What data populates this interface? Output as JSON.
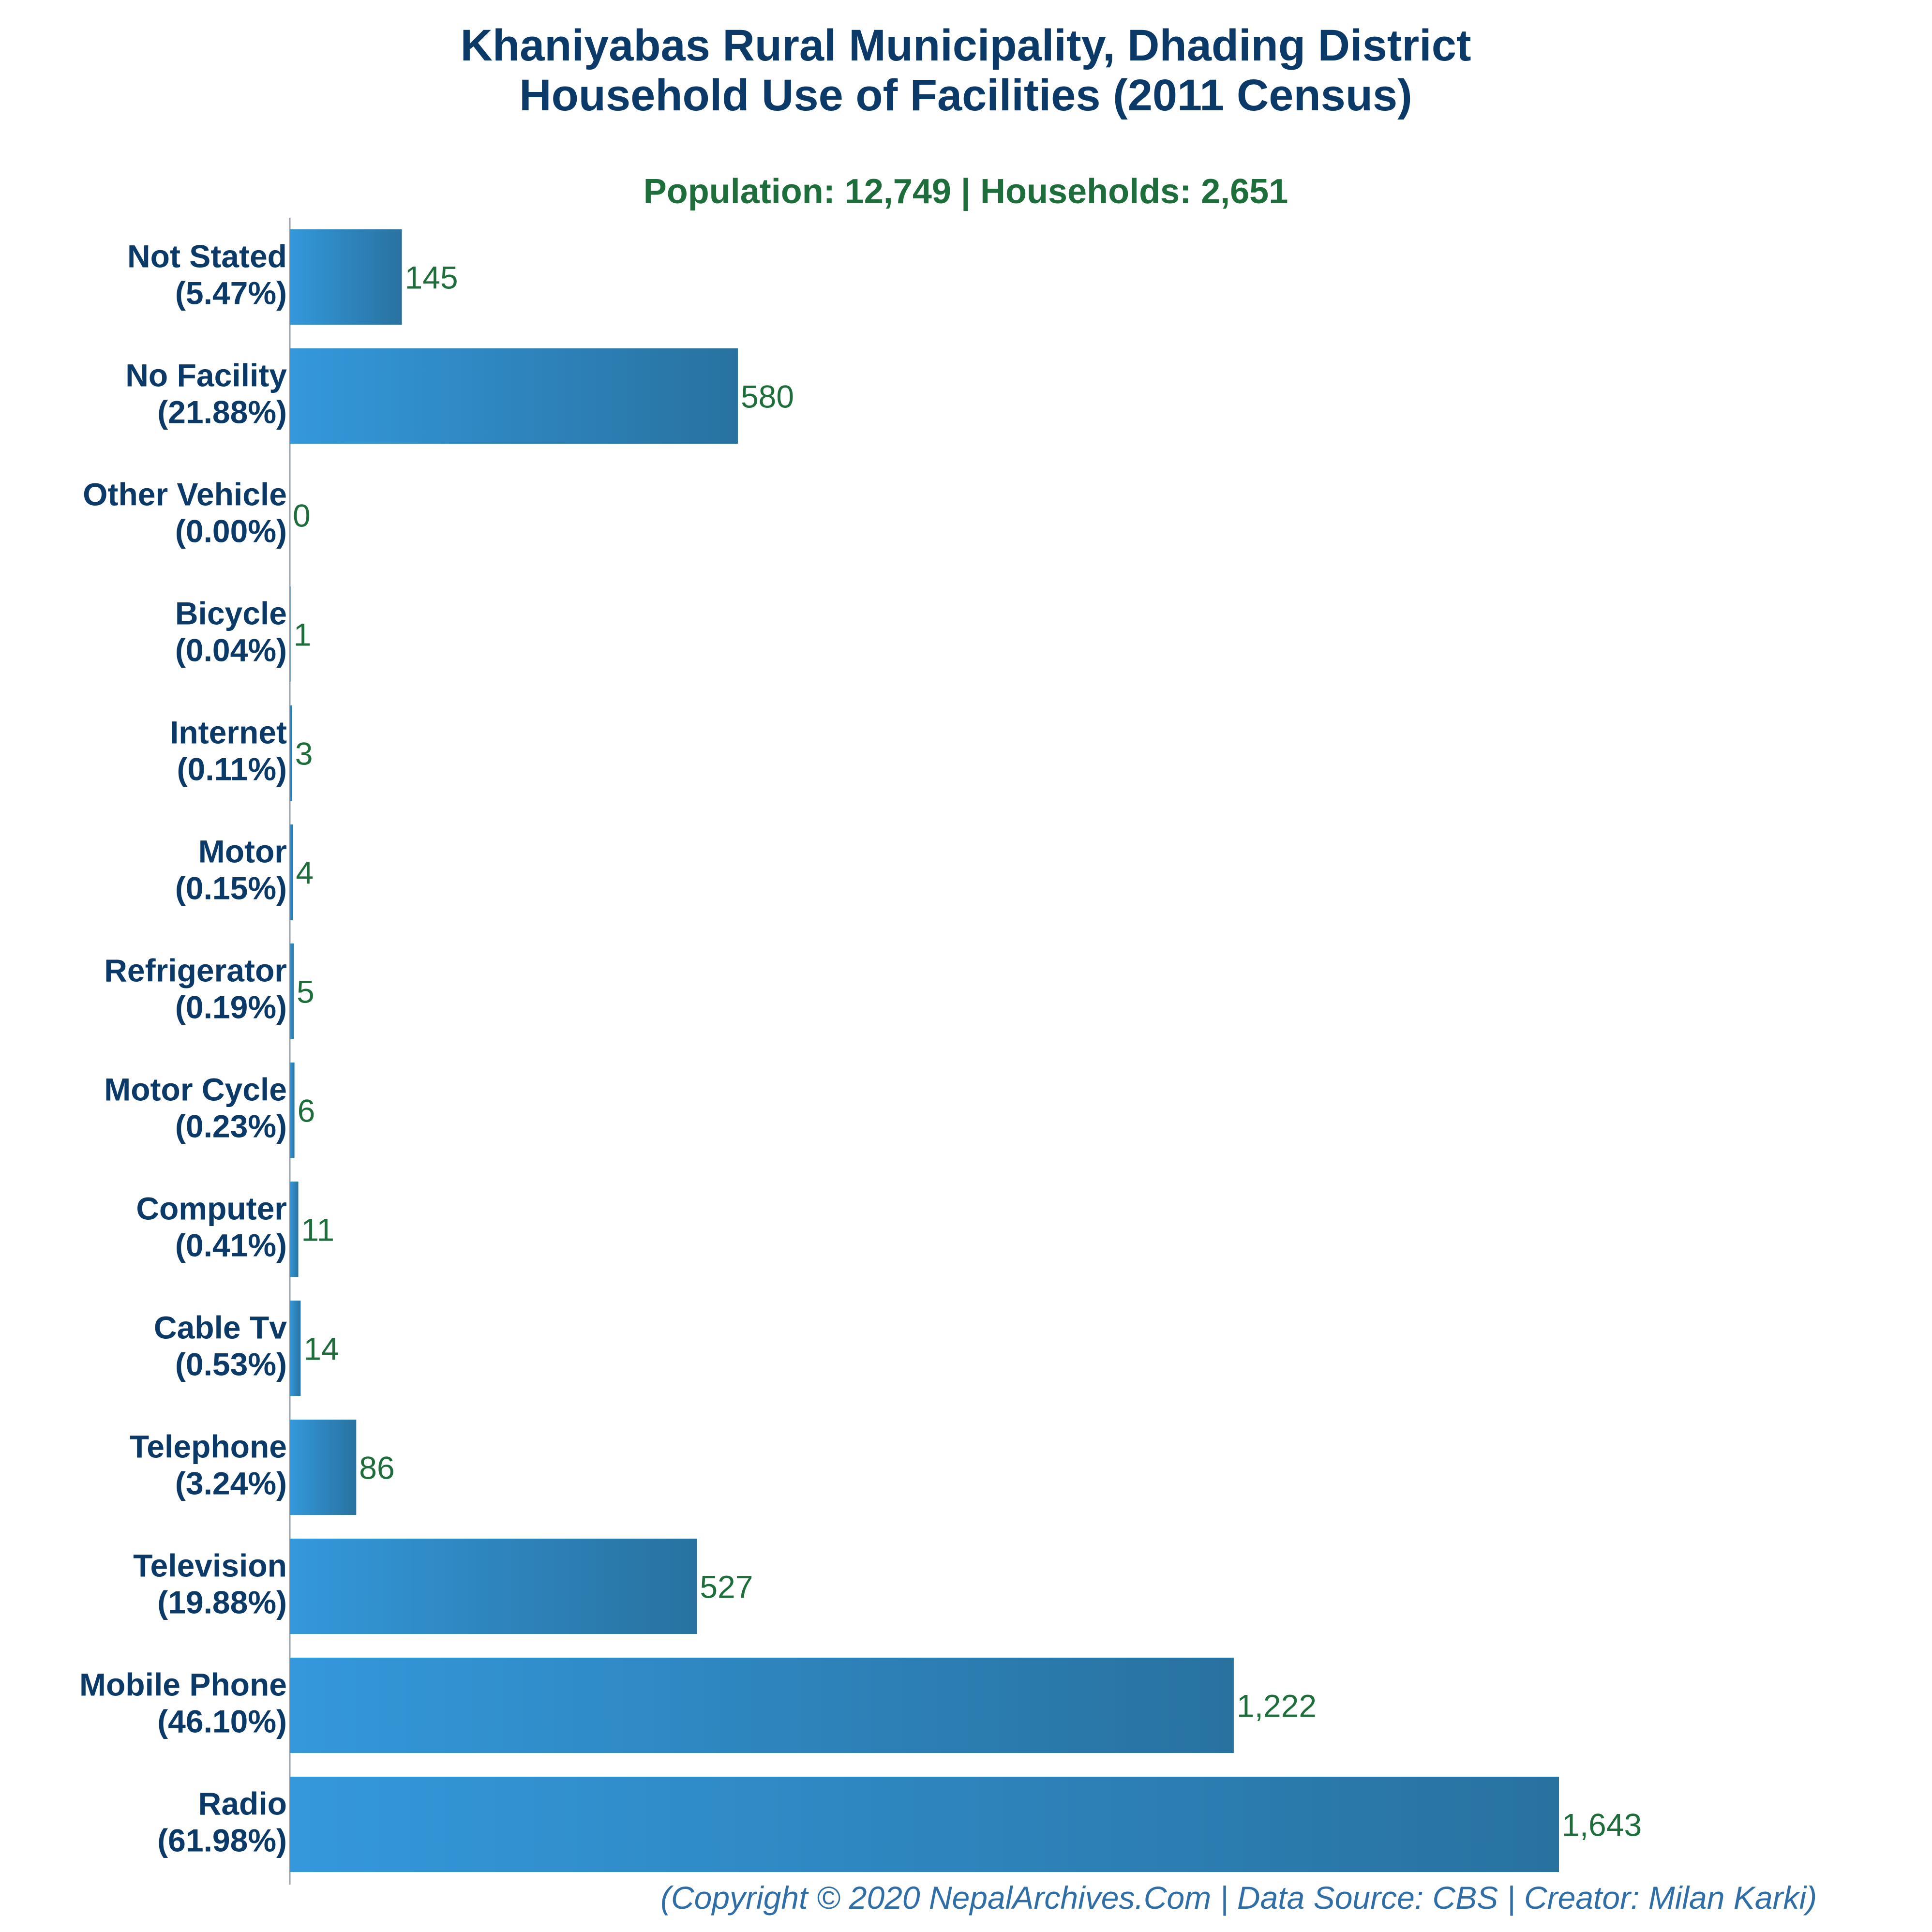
{
  "title_line1": "Khaniyabas Rural Municipality, Dhading District",
  "title_line2": "Household Use of Facilities (2011 Census)",
  "subtitle": "Population: 12,749 | Households: 2,651",
  "footer": "(Copyright © 2020 NepalArchives.Com | Data Source: CBS | Creator: Milan Karki)",
  "colors": {
    "bar_start": "#3498db",
    "bar_end": "#2872a0",
    "title": "#0b3a68",
    "subtitle": "#1e6e3c",
    "value": "#1e6e3c",
    "footer": "#2f6ea6"
  },
  "chart_data": {
    "type": "bar",
    "orientation": "horizontal",
    "categories": [
      "Not Stated",
      "No Facility",
      "Other Vehicle",
      "Bicycle",
      "Internet",
      "Motor",
      "Refrigerator",
      "Motor Cycle",
      "Computer",
      "Cable Tv",
      "Telephone",
      "Television",
      "Mobile Phone",
      "Radio"
    ],
    "percent_labels": [
      "(5.47%)",
      "(21.88%)",
      "(0.00%)",
      "(0.04%)",
      "(0.11%)",
      "(0.15%)",
      "(0.19%)",
      "(0.23%)",
      "(0.41%)",
      "(0.53%)",
      "(3.24%)",
      "(19.88%)",
      "(46.10%)",
      "(61.98%)"
    ],
    "values": [
      145,
      580,
      0,
      1,
      3,
      4,
      5,
      6,
      11,
      14,
      86,
      527,
      1222,
      1643
    ],
    "value_labels": [
      "145",
      "580",
      "0",
      "1",
      "3",
      "4",
      "5",
      "6",
      "11",
      "14",
      "86",
      "527",
      "1,222",
      "1,643"
    ],
    "xlim": [
      0,
      1643
    ],
    "grid": false,
    "legend": "none"
  }
}
